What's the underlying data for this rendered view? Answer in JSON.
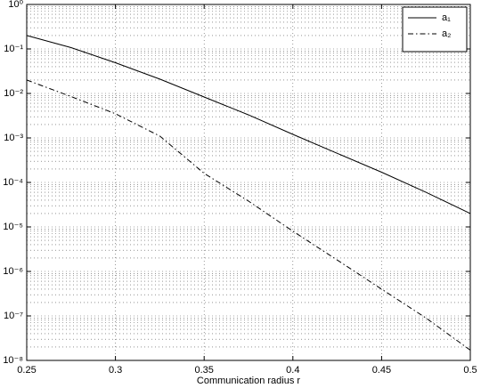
{
  "chart_data": {
    "type": "line",
    "x_label": "Communication radius r",
    "x": [
      0.25,
      0.275,
      0.3,
      0.325,
      0.35,
      0.375,
      0.4,
      0.425,
      0.45,
      0.475,
      0.5
    ],
    "series": [
      {
        "name": "a₁",
        "color": "#000000",
        "dash": "solid",
        "values": [
          0.2,
          0.107,
          0.049,
          0.021,
          0.0083,
          0.0033,
          0.0012,
          0.00045,
          0.00017,
          6e-05,
          2e-05
        ]
      },
      {
        "name": "a₂",
        "color": "#000000",
        "dash": "dashdot",
        "values": [
          0.02,
          0.0085,
          0.0035,
          0.0011,
          0.00016,
          3.8e-05,
          8e-06,
          1.8e-06,
          4e-07,
          9e-08,
          1.7e-08
        ]
      }
    ],
    "xlim": [
      0.25,
      0.5
    ],
    "xticks": [
      0.25,
      0.3,
      0.35,
      0.4,
      0.45,
      0.5
    ],
    "ylim": [
      1e-08,
      1
    ],
    "yticks": [
      {
        "value": 1e-08,
        "label": "10⁻⁸"
      },
      {
        "value": 1e-07,
        "label": "10⁻⁷"
      },
      {
        "value": 1e-06,
        "label": "10⁻⁶"
      },
      {
        "value": 1e-05,
        "label": "10⁻⁵"
      },
      {
        "value": 0.0001,
        "label": "10⁻⁴"
      },
      {
        "value": 0.001,
        "label": "10⁻³"
      },
      {
        "value": 0.01,
        "label": "10⁻²"
      },
      {
        "value": 0.1,
        "label": "10⁻¹"
      },
      {
        "value": 1,
        "label": "10⁰"
      }
    ],
    "log_y": true,
    "grid": true,
    "minor_grid": true,
    "legend": "upper right"
  }
}
